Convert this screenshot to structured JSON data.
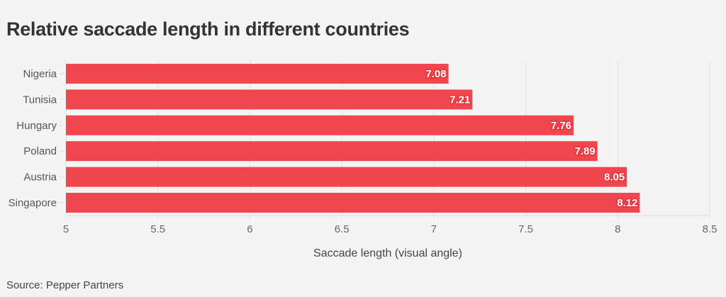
{
  "chart_data": {
    "type": "bar",
    "orientation": "horizontal",
    "title": "Relative saccade length in different countries",
    "categories": [
      "Nigeria",
      "Tunisia",
      "Hungary",
      "Poland",
      "Austria",
      "Singapore"
    ],
    "values": [
      7.08,
      7.21,
      7.76,
      7.89,
      8.05,
      8.12
    ],
    "value_labels": [
      "7.08",
      "7.21",
      "7.76",
      "7.89",
      "8.05",
      "8.12"
    ],
    "xlabel": "Saccade length (visual angle)",
    "ylabel": "",
    "xlim": [
      5,
      8.5
    ],
    "xticks": [
      "5",
      "5.5",
      "6",
      "6.5",
      "7",
      "7.5",
      "8",
      "8.5"
    ],
    "bar_color": "#f0474f",
    "source": "Source: Pepper Partners"
  }
}
